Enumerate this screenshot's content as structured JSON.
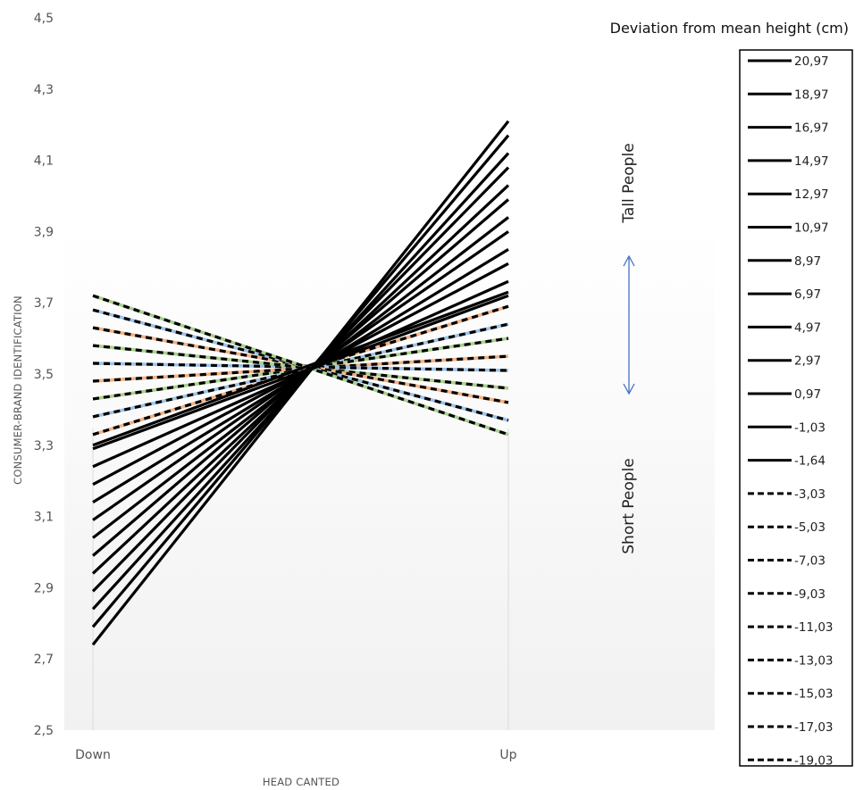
{
  "chart_data": {
    "type": "line",
    "xlabel": "HEAD CANTED",
    "ylabel": "CONSUMER-BRAND IDENTIFICATION",
    "categories": [
      "Down",
      "Up"
    ],
    "ylim": [
      2.5,
      4.5
    ],
    "yticks": [
      "2,5",
      "2,7",
      "2,9",
      "3,1",
      "3,3",
      "3,5",
      "3,7",
      "3,9",
      "4,1",
      "4,3",
      "4,5"
    ],
    "grid": false,
    "legend_title": "Deviation from mean height (cm)",
    "legend_position": "right",
    "annotations": {
      "tall": "Tall People",
      "short": "Short People",
      "arrow_color": "#4472c4"
    },
    "colors": {
      "line": "#000000",
      "dash_accents": [
        "#f4b183",
        "#9dc3e6",
        "#a9d18e"
      ]
    },
    "series": [
      {
        "name": "20,97",
        "style": "solid",
        "values": [
          2.74,
          4.21
        ]
      },
      {
        "name": "18,97",
        "style": "solid",
        "values": [
          2.79,
          4.17
        ]
      },
      {
        "name": "16,97",
        "style": "solid",
        "values": [
          2.84,
          4.12
        ]
      },
      {
        "name": "14,97",
        "style": "solid",
        "values": [
          2.89,
          4.08
        ]
      },
      {
        "name": "12,97",
        "style": "solid",
        "values": [
          2.94,
          4.03
        ]
      },
      {
        "name": "10,97",
        "style": "solid",
        "values": [
          2.99,
          3.99
        ]
      },
      {
        "name": "8,97",
        "style": "solid",
        "values": [
          3.04,
          3.94
        ]
      },
      {
        "name": "6,97",
        "style": "solid",
        "values": [
          3.09,
          3.9
        ]
      },
      {
        "name": "4,97",
        "style": "solid",
        "values": [
          3.14,
          3.85
        ]
      },
      {
        "name": "2,97",
        "style": "solid",
        "values": [
          3.19,
          3.81
        ]
      },
      {
        "name": "0,97",
        "style": "solid",
        "values": [
          3.24,
          3.76
        ]
      },
      {
        "name": "-1,03",
        "style": "solid",
        "values": [
          3.29,
          3.72
        ]
      },
      {
        "name": "-1,64",
        "style": "solid",
        "values": [
          3.3,
          3.73
        ]
      },
      {
        "name": "-3,03",
        "style": "dashed",
        "values": [
          3.33,
          3.69
        ]
      },
      {
        "name": "-5,03",
        "style": "dashed",
        "values": [
          3.38,
          3.64
        ]
      },
      {
        "name": "-7,03",
        "style": "dashed",
        "values": [
          3.43,
          3.6
        ]
      },
      {
        "name": "-9,03",
        "style": "dashed",
        "values": [
          3.48,
          3.55
        ]
      },
      {
        "name": "-11,03",
        "style": "dashed",
        "values": [
          3.53,
          3.51
        ]
      },
      {
        "name": "-13,03",
        "style": "dashed",
        "values": [
          3.58,
          3.46
        ]
      },
      {
        "name": "-15,03",
        "style": "dashed",
        "values": [
          3.63,
          3.42
        ]
      },
      {
        "name": "-17,03",
        "style": "dashed",
        "values": [
          3.68,
          3.37
        ]
      },
      {
        "name": "-19,03",
        "style": "dashed",
        "values": [
          3.72,
          3.33
        ]
      }
    ]
  }
}
